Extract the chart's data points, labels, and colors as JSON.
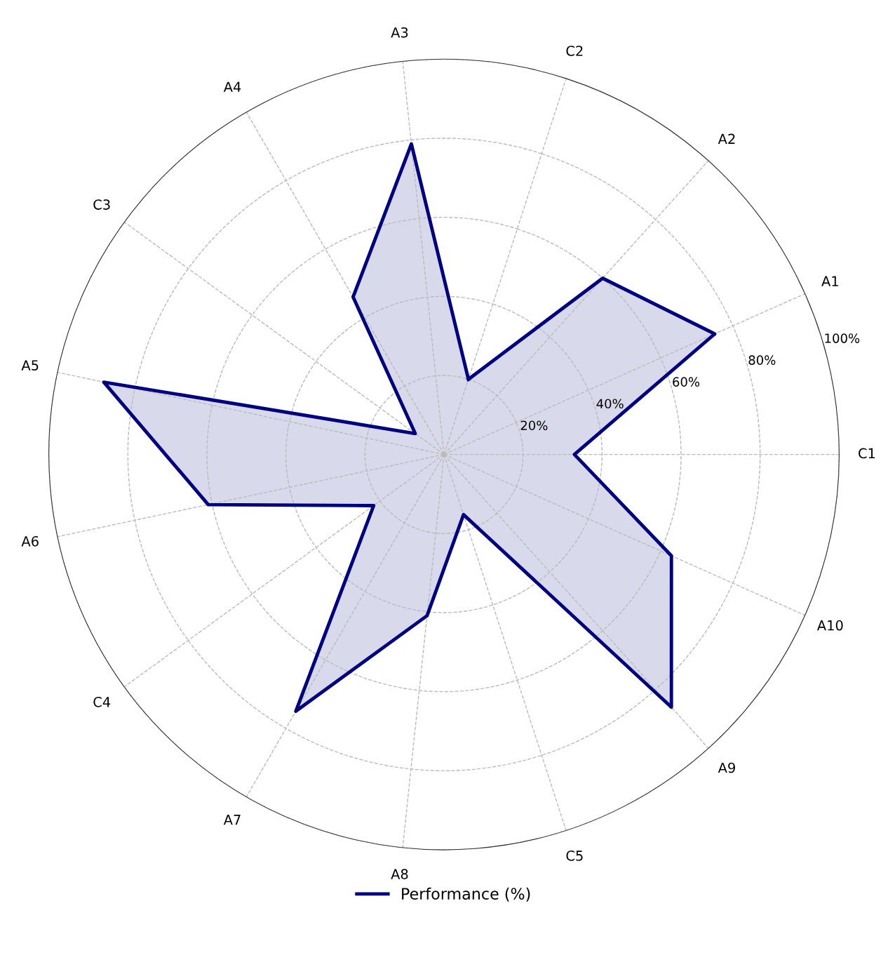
{
  "chart_data": {
    "type": "radar",
    "categories": [
      "C2",
      "A2",
      "A1",
      "C1",
      "A10",
      "A9",
      "C5",
      "A8",
      "A7",
      "C4",
      "A6",
      "A5",
      "C3",
      "A4",
      "A3"
    ],
    "series": [
      {
        "name": "Performance (%)",
        "color": "#000080",
        "values": [
          20,
          60,
          75,
          33,
          63,
          86,
          16,
          41,
          75,
          22,
          61,
          88,
          9,
          46,
          79
        ]
      }
    ],
    "ylim": [
      0,
      100
    ],
    "yticks": [
      {
        "value": 20,
        "label": "20%"
      },
      {
        "value": 40,
        "label": "40%"
      },
      {
        "value": 60,
        "label": "60%"
      },
      {
        "value": 80,
        "label": "80%"
      },
      {
        "value": 100,
        "label": "100%"
      }
    ],
    "grid": true,
    "legend": "bottom",
    "marker": "none",
    "line_style": "solid"
  }
}
